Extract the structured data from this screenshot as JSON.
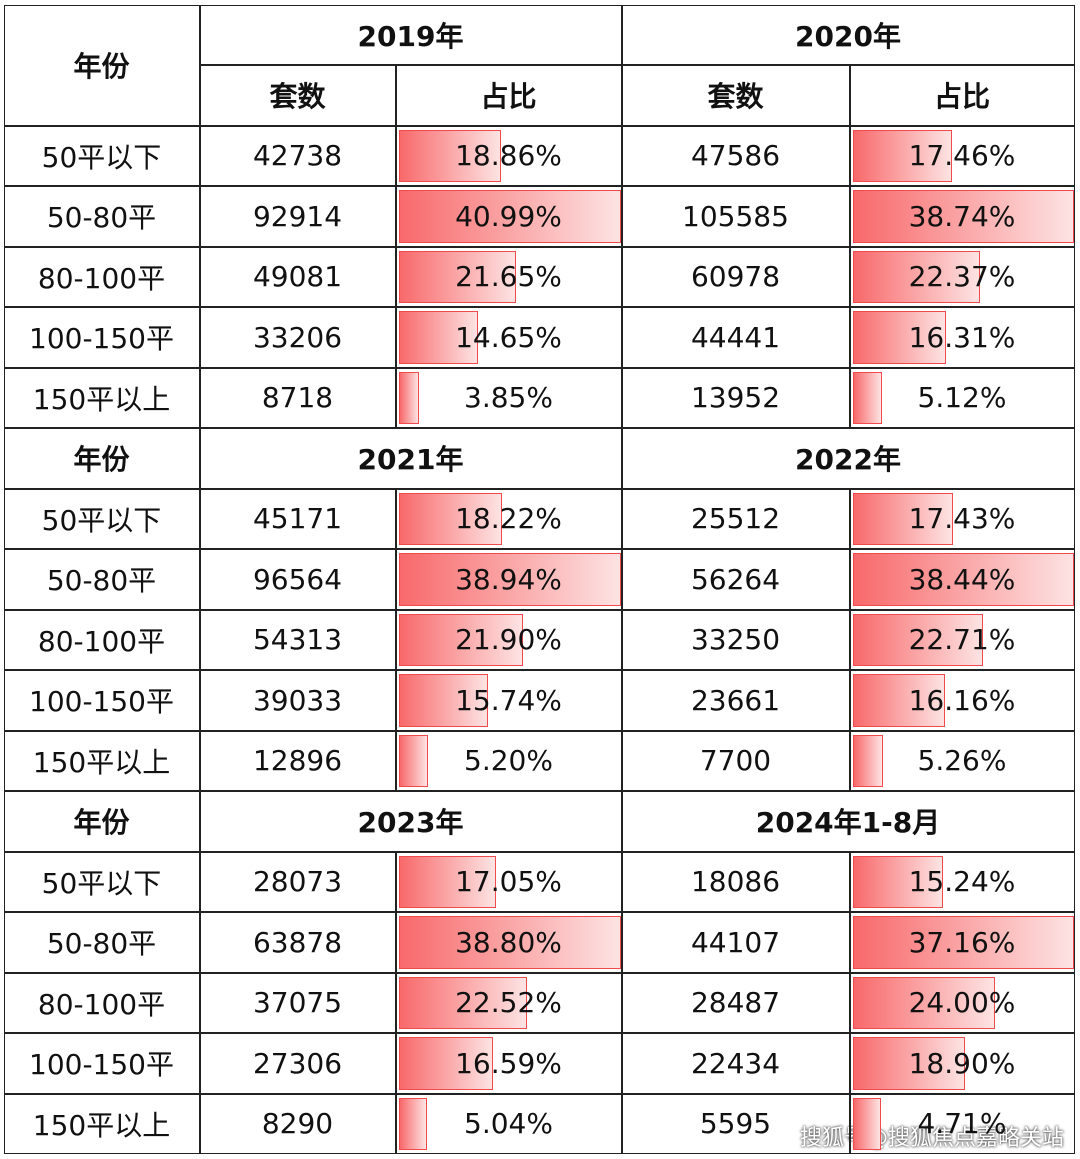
{
  "blocks": [
    {
      "label": "年份",
      "subheaders": [
        "套数",
        "占比"
      ],
      "categories": [
        "50平以下",
        "50-80平",
        "80-100平",
        "100-150平",
        "150平以上"
      ],
      "periods": [
        {
          "title": "2019年",
          "counts": [
            42738,
            92914,
            49081,
            33206,
            8718
          ],
          "shares": [
            18.86,
            40.99,
            21.65,
            14.65,
            3.85
          ],
          "share_labels": [
            "18.86%",
            "40.99%",
            "21.65%",
            "14.65%",
            "3.85%"
          ]
        },
        {
          "title": "2020年",
          "counts": [
            47586,
            105585,
            60978,
            44441,
            13952
          ],
          "shares": [
            17.46,
            38.74,
            22.37,
            16.31,
            5.12
          ],
          "share_labels": [
            "17.46%",
            "38.74%",
            "22.37%",
            "16.31%",
            "5.12%"
          ]
        }
      ]
    },
    {
      "label": "年份",
      "categories": [
        "50平以下",
        "50-80平",
        "80-100平",
        "100-150平",
        "150平以上"
      ],
      "periods": [
        {
          "title": "2021年",
          "counts": [
            45171,
            96564,
            54313,
            39033,
            12896
          ],
          "shares": [
            18.22,
            38.94,
            21.9,
            15.74,
            5.2
          ],
          "share_labels": [
            "18.22%",
            "38.94%",
            "21.90%",
            "15.74%",
            "5.20%"
          ]
        },
        {
          "title": "2022年",
          "counts": [
            25512,
            56264,
            33250,
            23661,
            7700
          ],
          "shares": [
            17.43,
            38.44,
            22.71,
            16.16,
            5.26
          ],
          "share_labels": [
            "17.43%",
            "38.44%",
            "22.71%",
            "16.16%",
            "5.26%"
          ]
        }
      ]
    },
    {
      "label": "年份",
      "categories": [
        "50平以下",
        "50-80平",
        "80-100平",
        "100-150平",
        "150平以上"
      ],
      "periods": [
        {
          "title": "2023年",
          "counts": [
            28073,
            63878,
            37075,
            27306,
            8290
          ],
          "shares": [
            17.05,
            38.8,
            22.52,
            16.59,
            5.04
          ],
          "share_labels": [
            "17.05%",
            "38.80%",
            "22.52%",
            "16.59%",
            "5.04%"
          ]
        },
        {
          "title": "2024年1-8月",
          "counts": [
            18086,
            44107,
            28487,
            22434,
            5595
          ],
          "shares": [
            15.24,
            37.16,
            24.0,
            18.9,
            4.71
          ],
          "share_labels": [
            "15.24%",
            "37.16%",
            "24.00%",
            "18.90%",
            "4.71%"
          ]
        }
      ]
    }
  ],
  "watermark": "搜狐号@搜狐焦点嘉略关站"
}
